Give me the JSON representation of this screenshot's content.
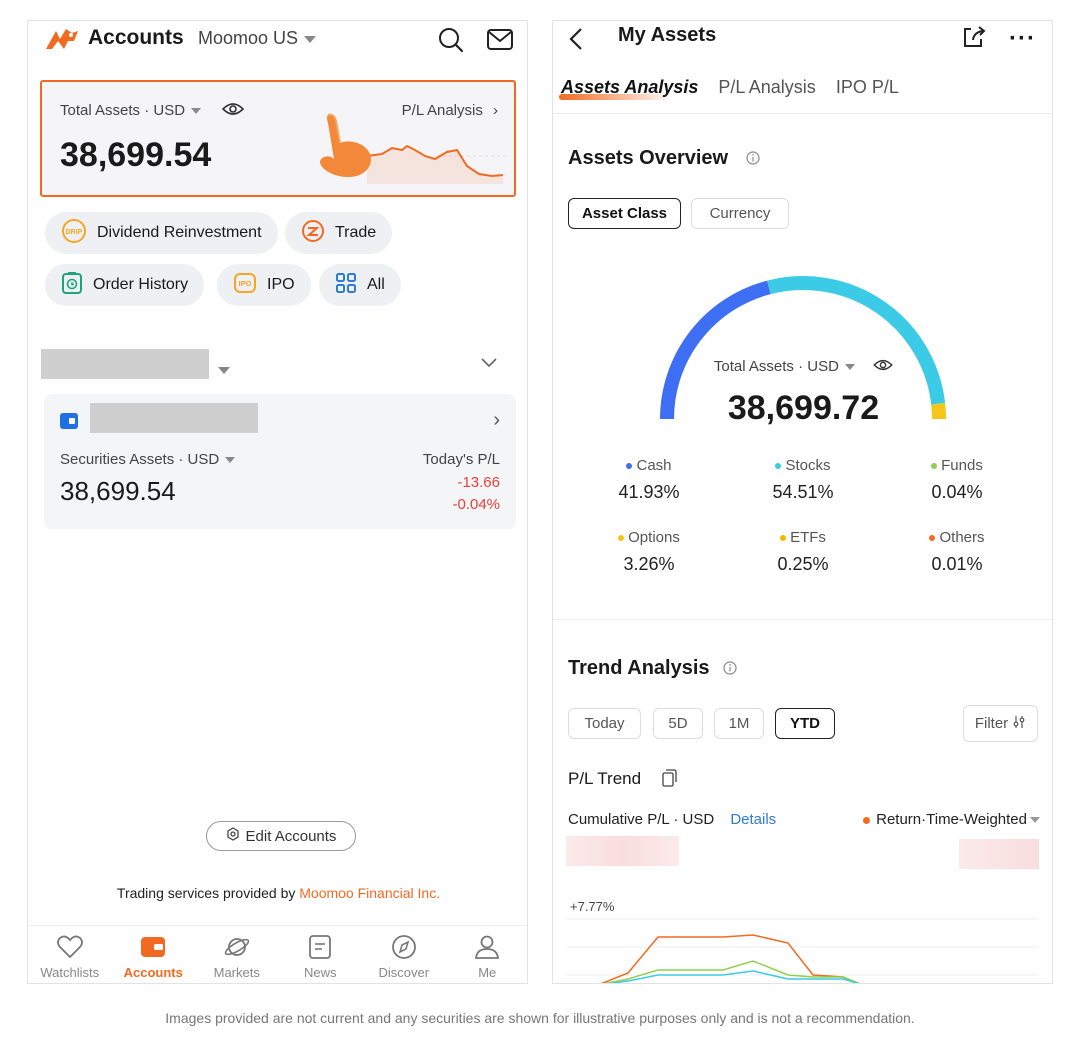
{
  "left": {
    "header": {
      "title": "Accounts",
      "account": "Moomoo US"
    },
    "total": {
      "label": "Total Assets · USD",
      "value": "38,699.54",
      "pl_link": "P/L Analysis"
    },
    "shortcuts": [
      {
        "label": "Dividend Reinvestment",
        "icon": "drip-icon"
      },
      {
        "label": "Trade",
        "icon": "trade-icon"
      },
      {
        "label": "Order History",
        "icon": "order-history-icon"
      },
      {
        "label": "IPO",
        "icon": "ipo-icon"
      },
      {
        "label": "All",
        "icon": "grid-icon"
      }
    ],
    "securities": {
      "label": "Securities Assets · USD",
      "value": "38,699.54",
      "pl_label": "Today's P/L",
      "pl_value": "-13.66",
      "pl_pct": "-0.04%"
    },
    "edit_accounts": "Edit Accounts",
    "services_text": "Trading services provided by ",
    "services_link": "Moomoo Financial Inc.",
    "tabbar": [
      {
        "label": "Watchlists",
        "icon": "heart-icon"
      },
      {
        "label": "Accounts",
        "icon": "wallet-icon",
        "active": true
      },
      {
        "label": "Markets",
        "icon": "planet-icon"
      },
      {
        "label": "News",
        "icon": "news-icon"
      },
      {
        "label": "Discover",
        "icon": "compass-icon"
      },
      {
        "label": "Me",
        "icon": "person-icon"
      }
    ]
  },
  "right": {
    "header": {
      "title": "My Assets"
    },
    "tabs": [
      "Assets Analysis",
      "P/L Analysis",
      "IPO P/L"
    ],
    "overview": {
      "title": "Assets Overview",
      "segments": [
        "Asset Class",
        "Currency"
      ],
      "total_label": "Total Assets · USD",
      "total_value": "38,699.72",
      "gauge": {
        "cash": 41.93,
        "stocks": 54.51,
        "others": 3.56
      },
      "legend": [
        {
          "name": "Cash",
          "pct": "41.93%",
          "color": "#3e6ef3"
        },
        {
          "name": "Stocks",
          "pct": "54.51%",
          "color": "#3ccbe6"
        },
        {
          "name": "Funds",
          "pct": "0.04%",
          "color": "#8fd14f"
        },
        {
          "name": "Options",
          "pct": "3.26%",
          "color": "#f5c518"
        },
        {
          "name": "ETFs",
          "pct": "0.25%",
          "color": "#f5b800"
        },
        {
          "name": "Others",
          "pct": "0.01%",
          "color": "#f26a21"
        }
      ]
    },
    "trend": {
      "title": "Trend Analysis",
      "ranges": [
        "Today",
        "5D",
        "1M",
        "YTD"
      ],
      "filter": "Filter",
      "pl_trend": "P/L Trend",
      "cumulative": "Cumulative P/L · USD",
      "details": "Details",
      "return_type": "Return·Time-Weighted",
      "top_value": "+7.77%"
    }
  },
  "footer": "Images provided are not current and any securities are shown for illustrative purposes only and is not a recommendation.",
  "colors": {
    "accent": "#f26a21",
    "loss": "#e8413d",
    "link": "#2f7bd8"
  }
}
